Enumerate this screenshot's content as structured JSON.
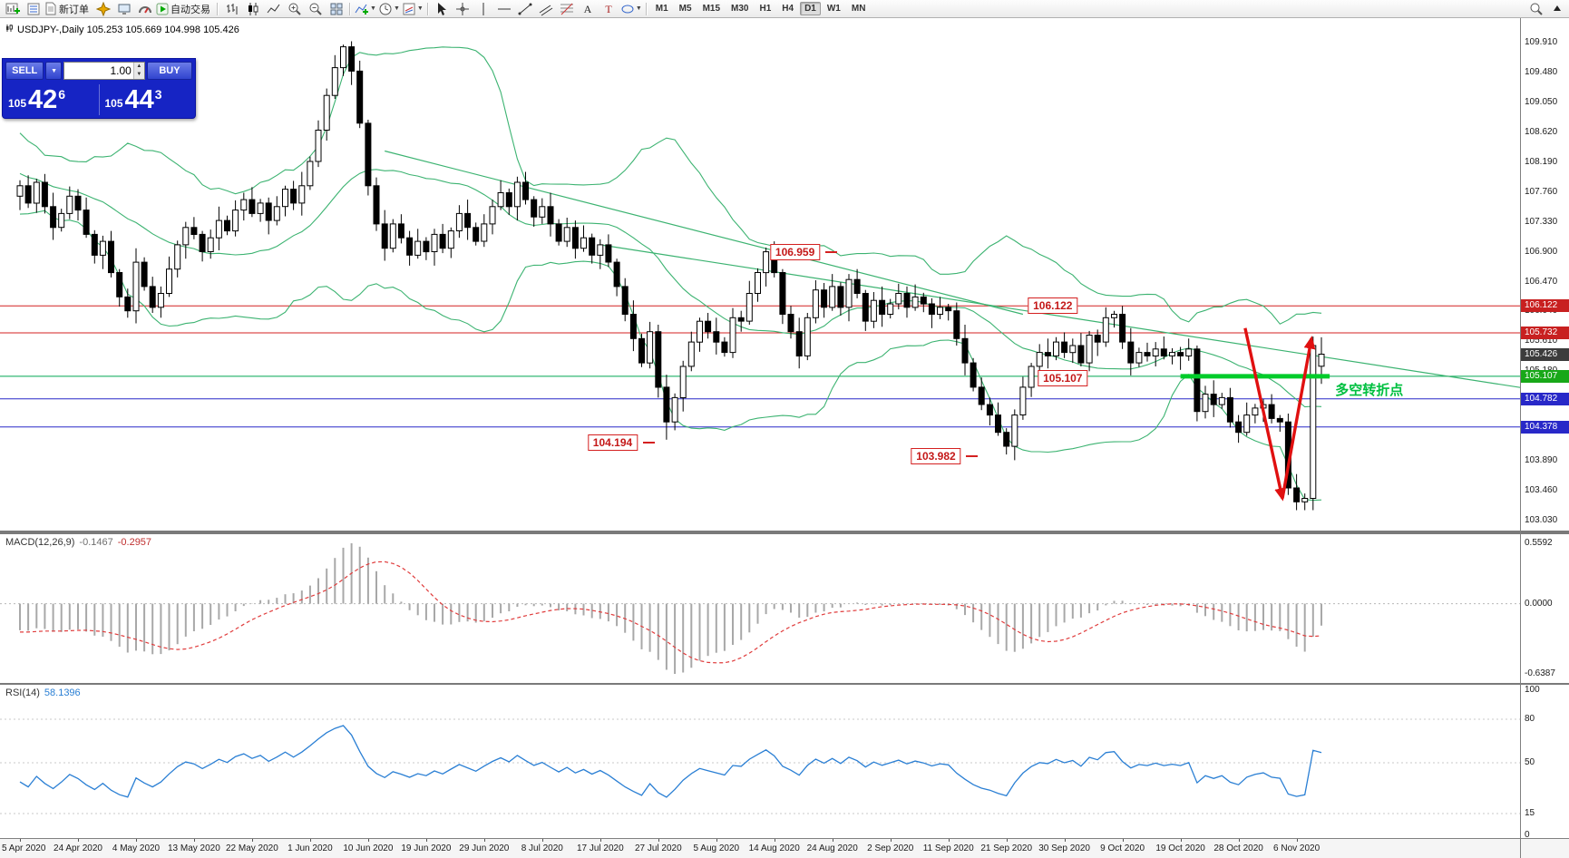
{
  "toolbar": {
    "new_order_label": "新订单",
    "autotrading_label": "自动交易",
    "timeframes": [
      "M1",
      "M5",
      "M15",
      "M30",
      "H1",
      "H4",
      "D1",
      "W1",
      "MN"
    ],
    "active_timeframe": "D1"
  },
  "symbol_line": "USDJPY-,Daily  105.253 105.669 104.998 105.426",
  "trade_panel": {
    "sell_label": "SELL",
    "buy_label": "BUY",
    "volume": "1.00",
    "sell_price": {
      "prefix": "105",
      "big": "42",
      "sup": "6"
    },
    "buy_price": {
      "prefix": "105",
      "big": "44",
      "sup": "3"
    }
  },
  "chart_data": {
    "type": "candlestick",
    "symbol": "USDJPY",
    "period": "Daily",
    "ylim": [
      103.03,
      109.91
    ],
    "price_axis_labels": [
      "109.910",
      "109.480",
      "109.050",
      "108.620",
      "108.190",
      "107.760",
      "107.330",
      "106.900",
      "106.470",
      "106.040",
      "105.610",
      "105.180",
      "104.750",
      "104.320",
      "103.890",
      "103.460",
      "103.030"
    ],
    "price_tags": [
      {
        "text": "106.122",
        "price": 106.122,
        "bg": "#c82020"
      },
      {
        "text": "105.732",
        "price": 105.732,
        "bg": "#c82020"
      },
      {
        "text": "105.426",
        "price": 105.426,
        "bg": "#3c3c3c"
      },
      {
        "text": "105.107",
        "price": 105.107,
        "bg": "#18a818"
      },
      {
        "text": "104.782",
        "price": 104.782,
        "bg": "#2828c8"
      },
      {
        "text": "104.378",
        "price": 104.378,
        "bg": "#2828c8"
      }
    ],
    "time_axis": [
      {
        "label": "5 Apr 2020",
        "bar": 0
      },
      {
        "label": "24 Apr 2020",
        "bar": 7
      },
      {
        "label": "4 May 2020",
        "bar": 14
      },
      {
        "label": "13 May 2020",
        "bar": 21
      },
      {
        "label": "22 May 2020",
        "bar": 28
      },
      {
        "label": "1 Jun 2020",
        "bar": 35
      },
      {
        "label": "10 Jun 2020",
        "bar": 42
      },
      {
        "label": "19 Jun 2020",
        "bar": 49
      },
      {
        "label": "29 Jun 2020",
        "bar": 56
      },
      {
        "label": "8 Jul 2020",
        "bar": 63
      },
      {
        "label": "17 Jul 2020",
        "bar": 70
      },
      {
        "label": "27 Jul 2020",
        "bar": 77
      },
      {
        "label": "5 Aug 2020",
        "bar": 84
      },
      {
        "label": "14 Aug 2020",
        "bar": 91
      },
      {
        "label": "24 Aug 2020",
        "bar": 98
      },
      {
        "label": "2 Sep 2020",
        "bar": 105
      },
      {
        "label": "11 Sep 2020",
        "bar": 112
      },
      {
        "label": "21 Sep 2020",
        "bar": 119
      },
      {
        "label": "30 Sep 2020",
        "bar": 126
      },
      {
        "label": "9 Oct 2020",
        "bar": 133
      },
      {
        "label": "19 Oct 2020",
        "bar": 140
      },
      {
        "label": "28 Oct 2020",
        "bar": 147
      },
      {
        "label": "6 Nov 2020",
        "bar": 154
      }
    ],
    "candles": {
      "first_open": 107.7,
      "closes": [
        107.85,
        107.6,
        107.9,
        107.55,
        107.25,
        107.45,
        107.7,
        107.5,
        107.15,
        106.85,
        107.05,
        106.6,
        106.25,
        106.05,
        106.75,
        106.4,
        106.1,
        106.3,
        106.65,
        107.0,
        107.25,
        107.15,
        106.9,
        107.1,
        107.35,
        107.2,
        107.5,
        107.65,
        107.45,
        107.6,
        107.35,
        107.55,
        107.8,
        107.6,
        107.85,
        108.2,
        108.65,
        109.15,
        109.55,
        109.85,
        109.5,
        108.75,
        107.85,
        107.3,
        106.95,
        107.3,
        107.1,
        106.85,
        107.05,
        106.9,
        107.15,
        106.95,
        107.2,
        107.45,
        107.25,
        107.05,
        107.3,
        107.55,
        107.75,
        107.55,
        107.9,
        107.65,
        107.4,
        107.55,
        107.3,
        107.05,
        107.25,
        106.95,
        107.1,
        106.85,
        107.0,
        106.75,
        106.4,
        106.0,
        105.65,
        105.3,
        105.75,
        104.95,
        104.45,
        104.8,
        105.25,
        105.6,
        105.9,
        105.75,
        105.6,
        105.45,
        105.95,
        105.9,
        106.3,
        106.6,
        106.9,
        106.6,
        106.0,
        105.75,
        105.4,
        105.95,
        106.35,
        106.1,
        106.4,
        106.1,
        106.5,
        106.3,
        105.9,
        106.2,
        106.0,
        106.15,
        106.3,
        106.1,
        106.25,
        106.15,
        106.0,
        106.1,
        106.05,
        105.65,
        105.3,
        104.95,
        104.7,
        104.55,
        104.3,
        104.1,
        104.55,
        104.95,
        105.25,
        105.45,
        105.4,
        105.6,
        105.45,
        105.55,
        105.3,
        105.7,
        105.6,
        105.95,
        106.0,
        105.6,
        105.3,
        105.45,
        105.4,
        105.5,
        105.4,
        105.45,
        105.4,
        105.5,
        104.6,
        104.85,
        104.7,
        104.8,
        104.45,
        104.3,
        104.55,
        104.65,
        104.7,
        104.5,
        104.45,
        103.5,
        103.3,
        103.35,
        105.55,
        105.426
      ],
      "wick_pattern": [
        0.08,
        0.15,
        0.05,
        0.12,
        0.2,
        0.07,
        0.14,
        0.1,
        0.18,
        0.06
      ],
      "special_bars": {
        "39": {
          "h": 109.88
        },
        "78": {
          "l": 104.194
        },
        "90": {
          "h": 106.959
        },
        "119": {
          "l": 103.982
        },
        "154": {
          "l": 103.18
        },
        "155": {
          "l": 103.18
        },
        "156": {
          "o": 103.35,
          "h": 105.68,
          "l": 103.18
        },
        "157": {
          "o": 105.253,
          "h": 105.669,
          "l": 104.998
        }
      },
      "pre_closes": [
        108.95,
        108.7,
        108.45,
        108.6,
        108.3,
        108.05,
        108.2,
        107.95,
        108.1,
        107.85,
        107.95,
        108.15,
        107.9,
        107.7,
        107.85,
        108.0,
        107.75,
        107.6,
        107.8,
        107.75
      ]
    },
    "bollinger": {
      "period": 20,
      "deviation": 2,
      "color": "#3CB371"
    },
    "objects": {
      "trendlines": [
        {
          "from": [
            44,
            108.35
          ],
          "to": [
            121,
            106.0
          ],
          "color": "#3CB371"
        },
        {
          "from": [
            70,
            107.0
          ],
          "to": [
            190,
            104.78
          ],
          "color": "#3CB371"
        }
      ],
      "hlines": [
        {
          "price": 106.122,
          "color": "#d42020"
        },
        {
          "price": 105.732,
          "color": "#d42020"
        },
        {
          "price": 105.107,
          "color": "#00a651"
        },
        {
          "price": 104.782,
          "color": "#2828c8"
        },
        {
          "price": 104.378,
          "color": "#2828c8"
        }
      ],
      "thick_segment": {
        "price": 105.107,
        "from_bar": 140,
        "to_bar": 158,
        "color": "#00cc2a",
        "width": 5
      },
      "arrows": [
        {
          "from": [
            147.8,
            105.8
          ],
          "to": [
            152.3,
            103.35
          ],
          "color": "#e01010"
        },
        {
          "from": [
            152.3,
            103.35
          ],
          "to": [
            155.8,
            105.65
          ],
          "color": "#e01010"
        }
      ],
      "callouts": [
        {
          "text": "106.959",
          "bar": 93.5,
          "price": 106.9,
          "tick": "right"
        },
        {
          "text": "106.122",
          "bar": 124.6,
          "price": 106.122,
          "tick": "none"
        },
        {
          "text": "105.107",
          "bar": 125.8,
          "price": 105.08,
          "tick": "none"
        },
        {
          "text": "104.194",
          "bar": 71.5,
          "price": 104.15,
          "tick": "right"
        },
        {
          "text": "103.982",
          "bar": 110.5,
          "price": 103.96,
          "tick": "right"
        }
      ],
      "text_labels": [
        {
          "text": "多空转折点",
          "bar": 159,
          "price": 104.93,
          "color": "#00c040"
        }
      ]
    }
  },
  "macd": {
    "name": "MACD(12,26,9)",
    "value_main": "-0.1467",
    "value_signal": "-0.2957",
    "scale": [
      "0.5592",
      "0.0000",
      "-0.6387"
    ],
    "fast": 12,
    "slow": 26,
    "signal": 9,
    "histogram_color": "#a8a8a8",
    "signal_color": "#e03c3c"
  },
  "rsi": {
    "name": "RSI(14)",
    "value": "58.1396",
    "period": 14,
    "color": "#2a7fd4",
    "levels": [
      80,
      50,
      15
    ],
    "scale": [
      {
        "text": "100",
        "level": 100
      },
      {
        "text": "80",
        "level": 80
      },
      {
        "text": "50",
        "level": 50
      },
      {
        "text": "15",
        "level": 15
      },
      {
        "text": "0",
        "level": 0
      }
    ]
  }
}
